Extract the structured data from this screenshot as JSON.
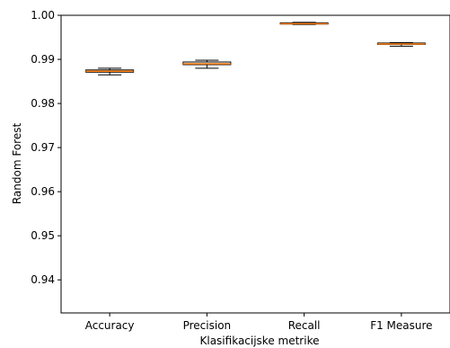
{
  "chart_data": {
    "type": "box",
    "xlabel": "Klasifikacijske metrike",
    "ylabel": "Random Forest",
    "ylim": [
      0.9325,
      1.0
    ],
    "yticks": [
      0.94,
      0.95,
      0.96,
      0.97,
      0.98,
      0.99,
      1.0
    ],
    "ytick_labels": [
      "0.94",
      "0.95",
      "0.96",
      "0.97",
      "0.98",
      "0.99",
      "1.00"
    ],
    "grid": false,
    "categories": [
      "Accuracy",
      "Precision",
      "Recall",
      "F1 Measure"
    ],
    "boxes": [
      {
        "label": "Accuracy",
        "whisker_low": 0.9865,
        "q1": 0.9871,
        "median": 0.9873,
        "q3": 0.9876,
        "whisker_high": 0.988
      },
      {
        "label": "Precision",
        "whisker_low": 0.988,
        "q1": 0.9888,
        "median": 0.989,
        "q3": 0.9894,
        "whisker_high": 0.9898
      },
      {
        "label": "Recall",
        "whisker_low": 0.9979,
        "q1": 0.998,
        "median": 0.9981,
        "q3": 0.9983,
        "whisker_high": 0.9984
      },
      {
        "label": "F1 Measure",
        "whisker_low": 0.993,
        "q1": 0.9934,
        "median": 0.9935,
        "q3": 0.9937,
        "whisker_high": 0.9938
      }
    ],
    "colors": {
      "box": "#000000",
      "median": "#ff7f0e",
      "background": "#ffffff"
    }
  }
}
